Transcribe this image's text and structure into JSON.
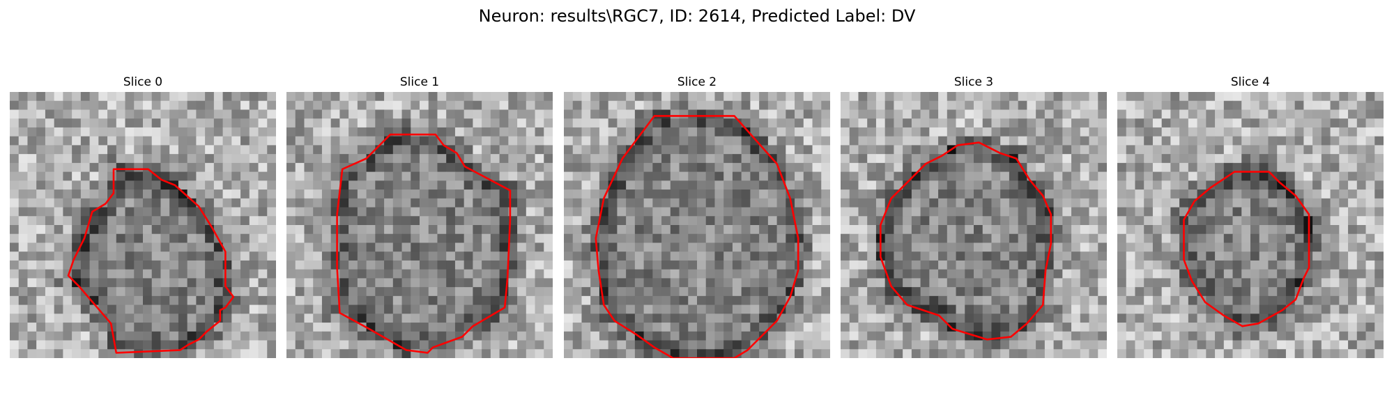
{
  "figure": {
    "title": "Neuron: results\\RGC7, ID: 2614, Predicted Label: DV",
    "contour_color": "#ff0000",
    "colormap": "grayscale",
    "grid_size": 30
  },
  "panels": [
    {
      "title": "Slice 0",
      "contour": [
        [
          0.39,
          0.29
        ],
        [
          0.52,
          0.29
        ],
        [
          0.57,
          0.33
        ],
        [
          0.62,
          0.35
        ],
        [
          0.71,
          0.43
        ],
        [
          0.76,
          0.51
        ],
        [
          0.81,
          0.6
        ],
        [
          0.81,
          0.73
        ],
        [
          0.84,
          0.77
        ],
        [
          0.81,
          0.81
        ],
        [
          0.79,
          0.82
        ],
        [
          0.79,
          0.86
        ],
        [
          0.74,
          0.9
        ],
        [
          0.71,
          0.93
        ],
        [
          0.67,
          0.95
        ],
        [
          0.64,
          0.97
        ],
        [
          0.4,
          0.98
        ],
        [
          0.38,
          0.87
        ],
        [
          0.26,
          0.73
        ],
        [
          0.22,
          0.69
        ],
        [
          0.24,
          0.63
        ],
        [
          0.28,
          0.55
        ],
        [
          0.31,
          0.45
        ],
        [
          0.36,
          0.42
        ],
        [
          0.39,
          0.38
        ]
      ]
    },
    {
      "title": "Slice 1",
      "contour": [
        [
          0.39,
          0.16
        ],
        [
          0.56,
          0.16
        ],
        [
          0.59,
          0.2
        ],
        [
          0.64,
          0.23
        ],
        [
          0.67,
          0.28
        ],
        [
          0.84,
          0.37
        ],
        [
          0.84,
          0.48
        ],
        [
          0.83,
          0.7
        ],
        [
          0.82,
          0.81
        ],
        [
          0.7,
          0.88
        ],
        [
          0.66,
          0.92
        ],
        [
          0.55,
          0.96
        ],
        [
          0.53,
          0.98
        ],
        [
          0.45,
          0.97
        ],
        [
          0.31,
          0.89
        ],
        [
          0.2,
          0.83
        ],
        [
          0.19,
          0.66
        ],
        [
          0.19,
          0.46
        ],
        [
          0.21,
          0.29
        ],
        [
          0.3,
          0.25
        ]
      ]
    },
    {
      "title": "Slice 2",
      "contour": [
        [
          0.34,
          0.09
        ],
        [
          0.64,
          0.09
        ],
        [
          0.8,
          0.27
        ],
        [
          0.85,
          0.4
        ],
        [
          0.88,
          0.55
        ],
        [
          0.88,
          0.67
        ],
        [
          0.85,
          0.77
        ],
        [
          0.8,
          0.86
        ],
        [
          0.69,
          0.97
        ],
        [
          0.64,
          1.0
        ],
        [
          0.41,
          1.0
        ],
        [
          0.34,
          0.96
        ],
        [
          0.27,
          0.91
        ],
        [
          0.19,
          0.86
        ],
        [
          0.15,
          0.8
        ],
        [
          0.13,
          0.67
        ],
        [
          0.12,
          0.55
        ],
        [
          0.15,
          0.4
        ],
        [
          0.22,
          0.25
        ]
      ]
    },
    {
      "title": "Slice 3",
      "contour": [
        [
          0.44,
          0.2
        ],
        [
          0.52,
          0.19
        ],
        [
          0.6,
          0.23
        ],
        [
          0.66,
          0.25
        ],
        [
          0.71,
          0.33
        ],
        [
          0.76,
          0.39
        ],
        [
          0.79,
          0.46
        ],
        [
          0.79,
          0.57
        ],
        [
          0.77,
          0.67
        ],
        [
          0.76,
          0.8
        ],
        [
          0.7,
          0.87
        ],
        [
          0.64,
          0.92
        ],
        [
          0.55,
          0.93
        ],
        [
          0.42,
          0.89
        ],
        [
          0.37,
          0.84
        ],
        [
          0.25,
          0.8
        ],
        [
          0.19,
          0.73
        ],
        [
          0.15,
          0.62
        ],
        [
          0.15,
          0.5
        ],
        [
          0.19,
          0.4
        ],
        [
          0.25,
          0.34
        ],
        [
          0.32,
          0.27
        ],
        [
          0.38,
          0.24
        ]
      ]
    },
    {
      "title": "Slice 4",
      "contour": [
        [
          0.44,
          0.3
        ],
        [
          0.57,
          0.3
        ],
        [
          0.61,
          0.34
        ],
        [
          0.67,
          0.39
        ],
        [
          0.72,
          0.46
        ],
        [
          0.72,
          0.66
        ],
        [
          0.7,
          0.7
        ],
        [
          0.67,
          0.78
        ],
        [
          0.62,
          0.82
        ],
        [
          0.53,
          0.87
        ],
        [
          0.47,
          0.88
        ],
        [
          0.4,
          0.84
        ],
        [
          0.33,
          0.79
        ],
        [
          0.28,
          0.71
        ],
        [
          0.25,
          0.63
        ],
        [
          0.25,
          0.48
        ],
        [
          0.29,
          0.41
        ],
        [
          0.35,
          0.36
        ]
      ]
    }
  ]
}
